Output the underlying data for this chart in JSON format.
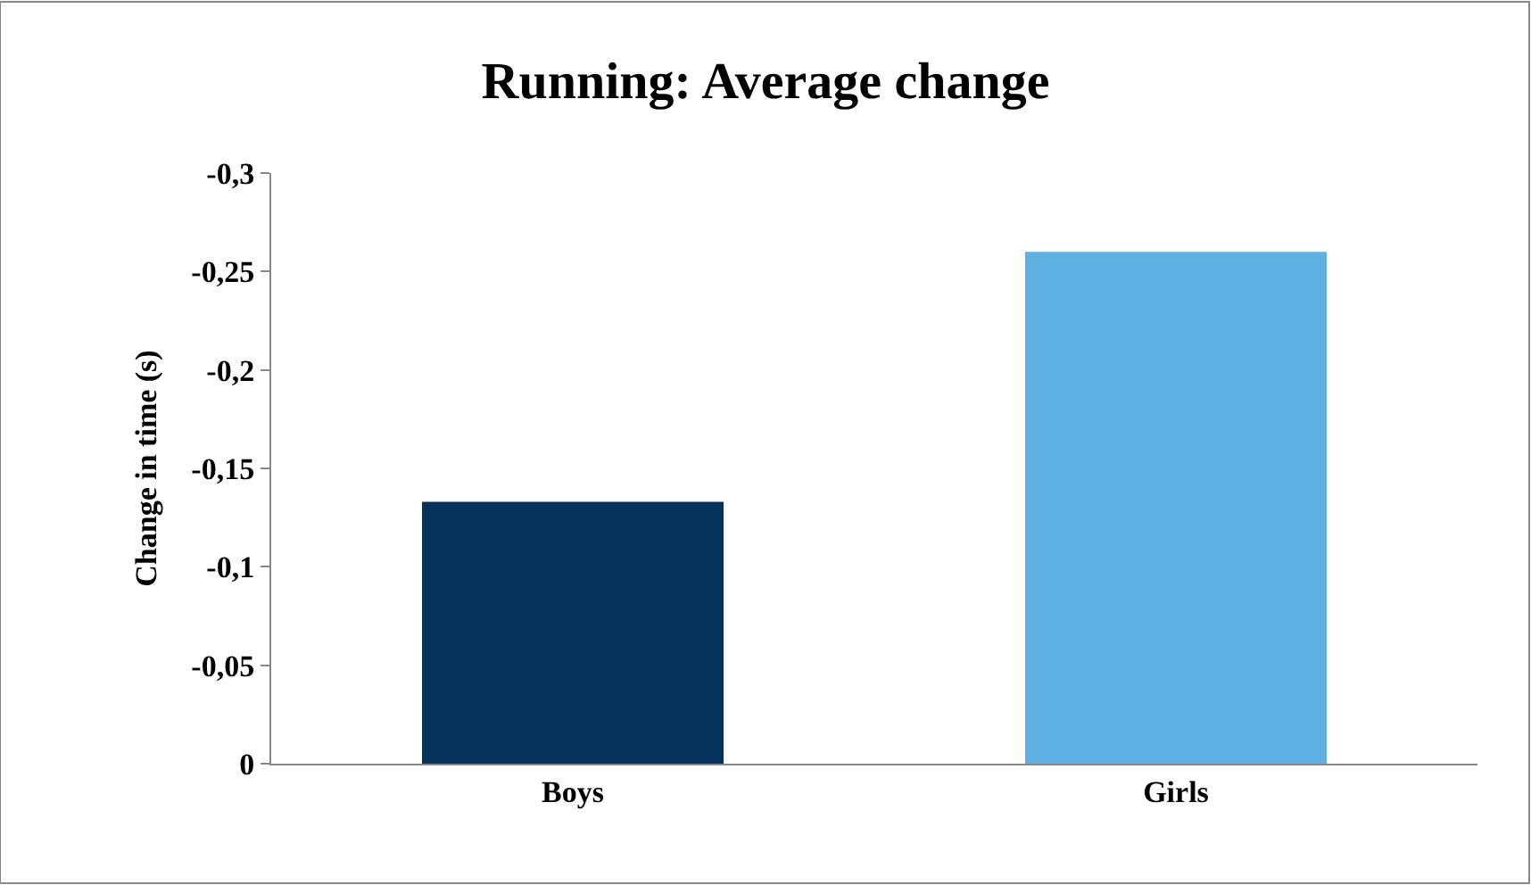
{
  "chart_data": {
    "type": "bar",
    "title": "Running: Average change",
    "ylabel": "Change in time (s)",
    "categories": [
      "Boys",
      "Girls"
    ],
    "values": [
      -0.133,
      -0.26
    ],
    "colors": [
      "#04325a",
      "#5eb1e2"
    ],
    "ylim": [
      0,
      -0.3
    ],
    "yticks": [
      {
        "value": 0,
        "label": "0"
      },
      {
        "value": -0.05,
        "label": "-0,05"
      },
      {
        "value": -0.1,
        "label": "-0,1"
      },
      {
        "value": -0.15,
        "label": "-0,15"
      },
      {
        "value": -0.2,
        "label": "-0,2"
      },
      {
        "value": -0.25,
        "label": "-0,25"
      },
      {
        "value": -0.3,
        "label": "-0,3"
      }
    ]
  }
}
